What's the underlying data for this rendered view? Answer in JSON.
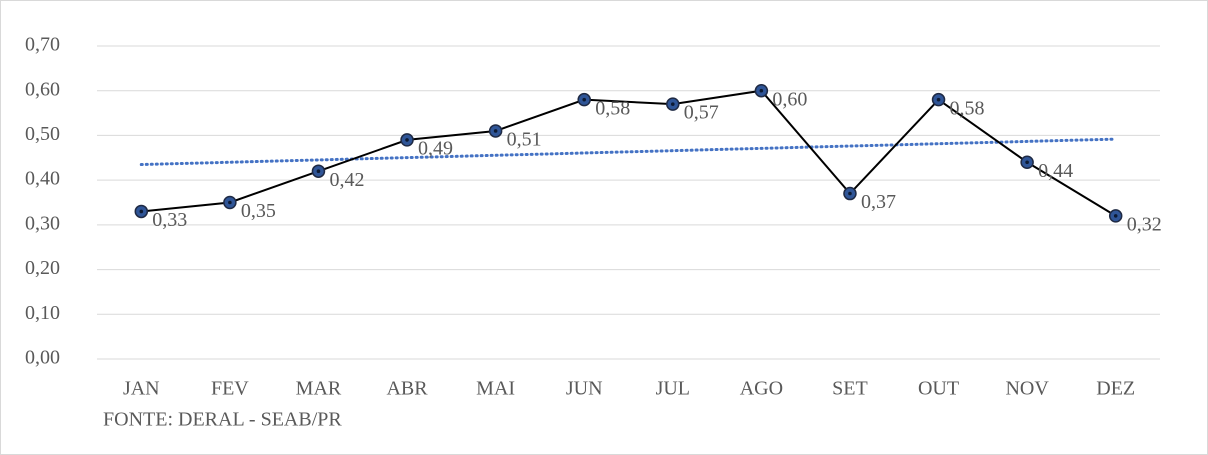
{
  "chart_data": {
    "type": "line",
    "categories": [
      "JAN",
      "FEV",
      "MAR",
      "ABR",
      "MAI",
      "JUN",
      "JUL",
      "AGO",
      "SET",
      "OUT",
      "NOV",
      "DEZ"
    ],
    "series": [
      {
        "color": "#000000",
        "marker_color": "#2f5597",
        "values": [
          0.33,
          0.35,
          0.42,
          0.49,
          0.51,
          0.58,
          0.57,
          0.6,
          0.37,
          0.58,
          0.44,
          0.32
        ],
        "value_labels": [
          "0,33",
          "0,35",
          "0,42",
          "0,49",
          "0,51",
          "0,58",
          "0,57",
          "0,60",
          "0,37",
          "0,58",
          "0,44",
          "0,32"
        ]
      }
    ],
    "trendline": {
      "kind": "linear",
      "color": "#4472c4",
      "style": "dotted"
    },
    "ylim": [
      0,
      0.7
    ],
    "yticks": [
      {
        "value": 0,
        "label": "0,00"
      },
      {
        "value": 0.1,
        "label": "0,10"
      },
      {
        "value": 0.2,
        "label": "0,20"
      },
      {
        "value": 0.3,
        "label": "0,30"
      },
      {
        "value": 0.4,
        "label": "0,40"
      },
      {
        "value": 0.5,
        "label": "0,50"
      },
      {
        "value": 0.6,
        "label": "0,60"
      },
      {
        "value": 0.7,
        "label": "0,70"
      }
    ],
    "grid": true,
    "source": "FONTE: DERAL - SEAB/PR"
  }
}
